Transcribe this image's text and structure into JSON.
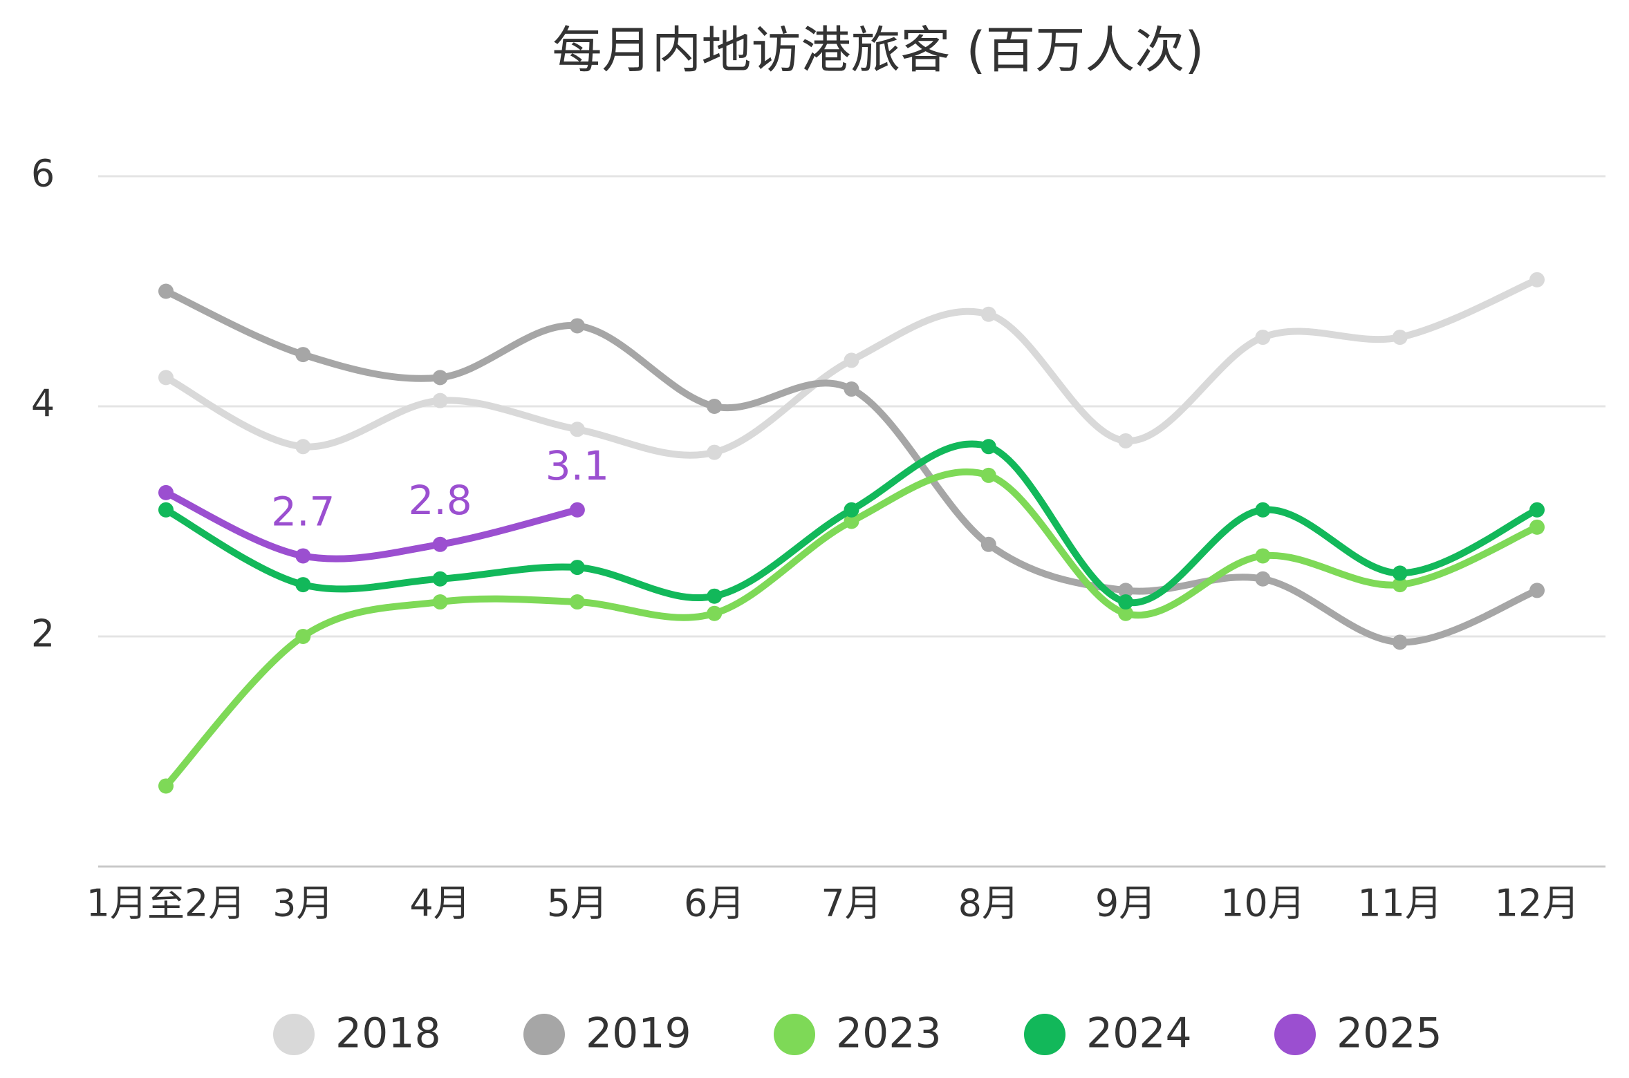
{
  "chart_data": {
    "type": "line",
    "title": "每月内地访港旅客 (百万人次)",
    "categories": [
      "1月至2月",
      "3月",
      "4月",
      "5月",
      "6月",
      "7月",
      "8月",
      "9月",
      "10月",
      "11月",
      "12月"
    ],
    "series": [
      {
        "name": "2018",
        "color": "#d9d9d9",
        "values": [
          4.25,
          3.65,
          4.05,
          3.8,
          3.6,
          4.4,
          4.8,
          3.7,
          4.6,
          4.6,
          5.1
        ]
      },
      {
        "name": "2019",
        "color": "#a6a6a6",
        "values": [
          5.0,
          4.45,
          4.25,
          4.7,
          4.0,
          4.15,
          2.8,
          2.4,
          2.5,
          1.95,
          2.4
        ]
      },
      {
        "name": "2023",
        "color": "#7ed957",
        "values": [
          0.7,
          2.0,
          2.3,
          2.3,
          2.2,
          3.0,
          3.4,
          2.2,
          2.7,
          2.45,
          2.95
        ]
      },
      {
        "name": "2024",
        "color": "#12b85a",
        "values": [
          3.1,
          2.45,
          2.5,
          2.6,
          2.35,
          3.1,
          3.65,
          2.3,
          3.1,
          2.55,
          3.1
        ]
      },
      {
        "name": "2025",
        "color": "#9b4fd0",
        "values": [
          3.25,
          2.7,
          2.8,
          3.1,
          null,
          null,
          null,
          null,
          null,
          null,
          null
        ],
        "value_labels": [
          null,
          "2.7",
          "2.8",
          "3.1",
          null,
          null,
          null,
          null,
          null,
          null,
          null
        ]
      }
    ],
    "ylim": [
      0,
      6
    ],
    "yticks": [
      2,
      4,
      6
    ],
    "grid": true,
    "legend": "bottom"
  }
}
